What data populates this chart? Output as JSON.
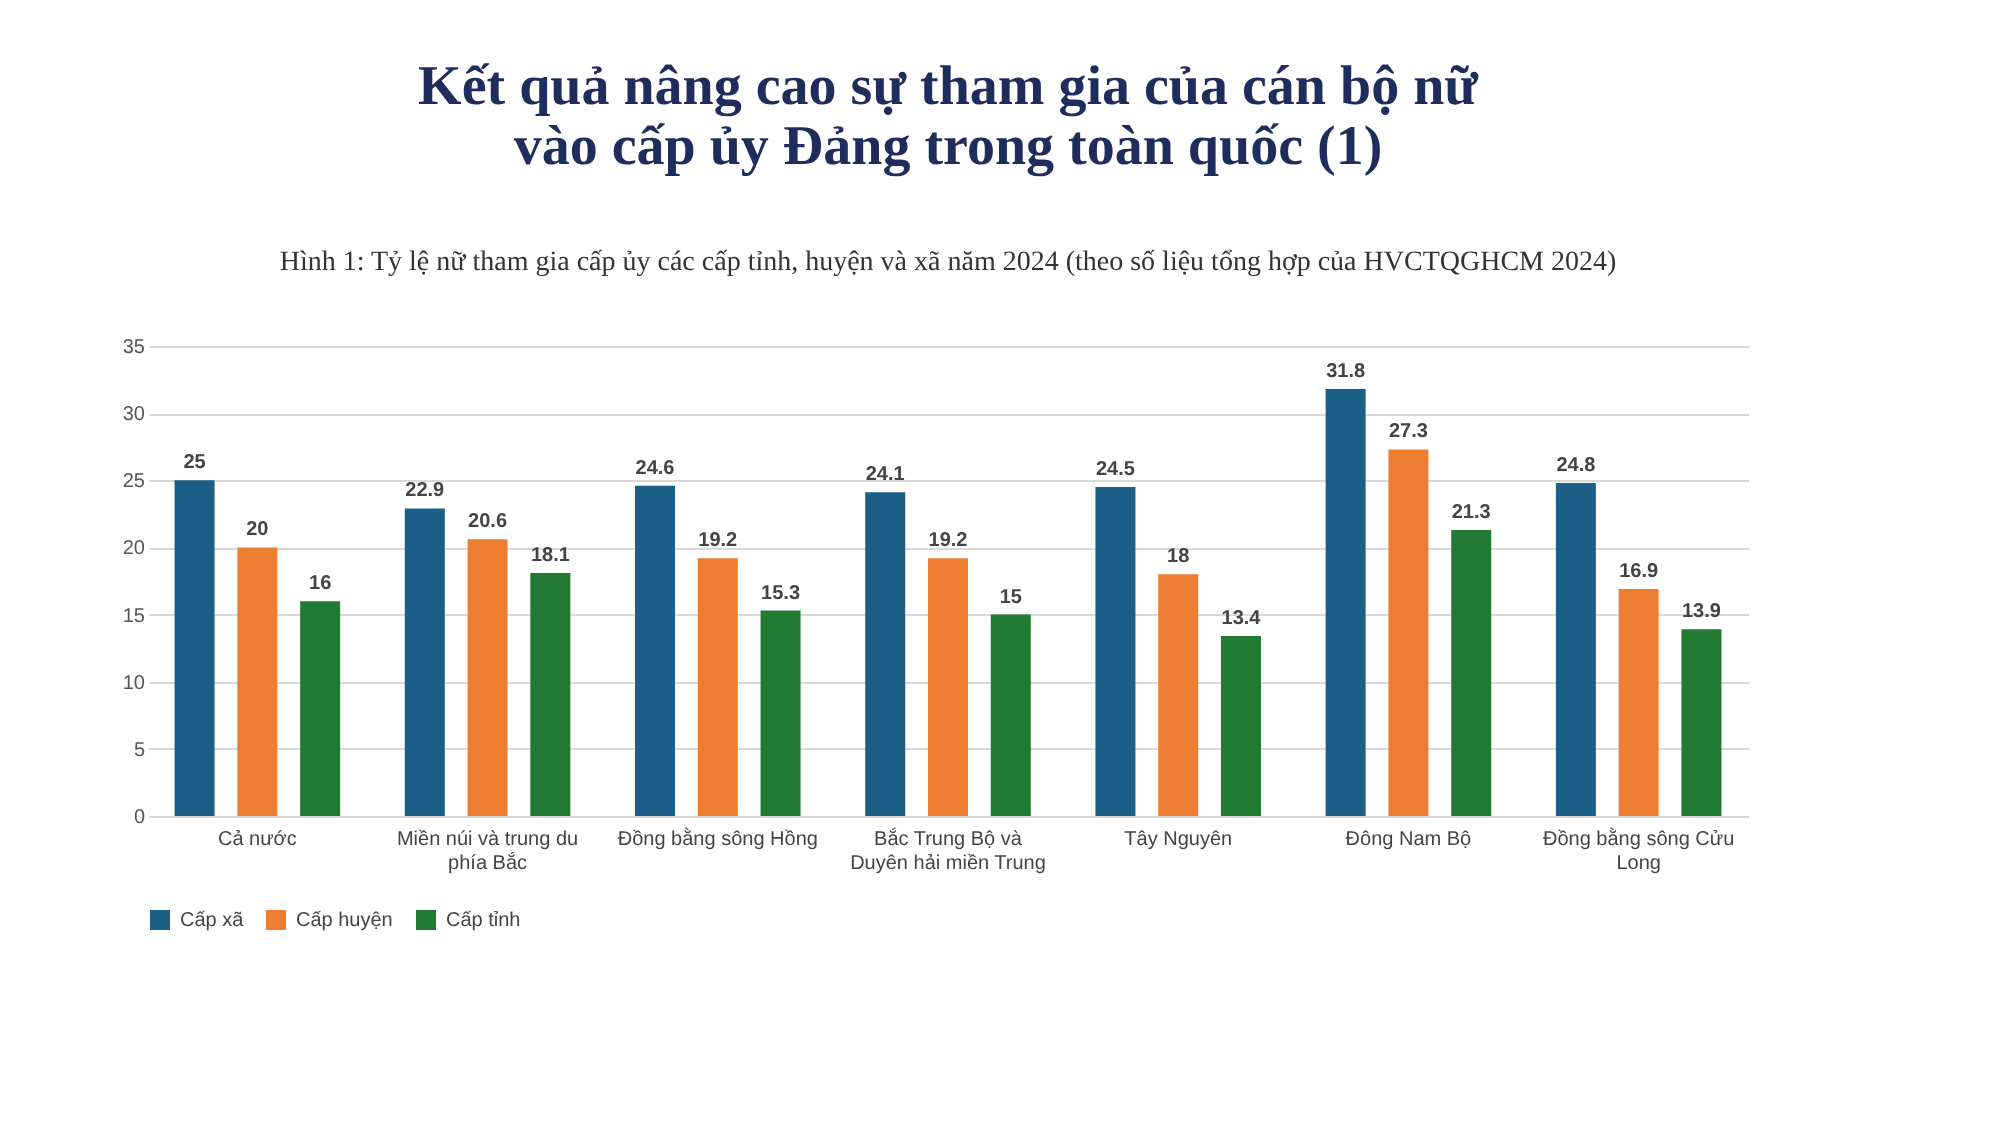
{
  "chart_data": {
    "type": "bar",
    "title": "Kết quả nâng cao sự tham gia của cán bộ nữ\nvào cấp ủy Đảng trong toàn quốc (1)",
    "subtitle": "Hình 1: Tỷ lệ nữ tham gia cấp ủy các cấp tỉnh, huyện và xã năm 2024 (theo số liệu tổng hợp của HVCTQGHCM 2024)",
    "categories": [
      "Cả nước",
      "Miền núi và trung du phía Bắc",
      "Đồng bằng sông Hồng",
      "Bắc Trung Bộ và Duyên hải miền Trung",
      "Tây Nguyên",
      "Đông Nam Bộ",
      "Đồng bằng sông Cửu Long"
    ],
    "series": [
      {
        "name": "Cấp xã",
        "color": "#1b5e86",
        "values": [
          25,
          22.9,
          24.6,
          24.1,
          24.5,
          31.8,
          24.8
        ]
      },
      {
        "name": "Cấp huyện",
        "color": "#ed7d31",
        "values": [
          20,
          20.6,
          19.2,
          19.2,
          18,
          27.3,
          16.9
        ]
      },
      {
        "name": "Cấp tỉnh",
        "color": "#217a32",
        "values": [
          16,
          18.1,
          15.3,
          15,
          13.4,
          21.3,
          13.9
        ]
      }
    ],
    "ylim": [
      0,
      35
    ],
    "yticks": [
      0,
      5,
      10,
      15,
      20,
      25,
      30,
      35
    ],
    "grid": "y",
    "legend": "bottom",
    "data_labels": true
  }
}
